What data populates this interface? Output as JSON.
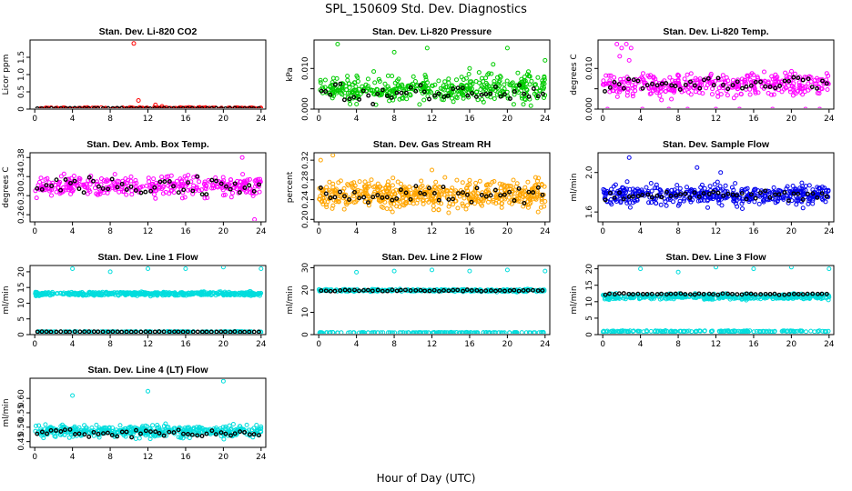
{
  "figure": {
    "title": "SPL_150609  Std. Dev. Diagnostics",
    "xlabel": "Hour of Day (UTC)"
  },
  "chart_data": [
    {
      "type": "scatter",
      "title": "Stan. Dev. Li-820 CO2",
      "ylabel": "Licor ppm",
      "xlim": [
        -0.5,
        24.5
      ],
      "ylim": [
        0,
        2
      ],
      "xticks": [
        0,
        4,
        8,
        12,
        16,
        20,
        24
      ],
      "yticks": [
        0,
        0.5,
        1.0,
        1.5
      ],
      "ytick_labels": [
        "0",
        "0.5",
        "1.0",
        "1.5"
      ],
      "colors": {
        "fill": "#ff0000",
        "avg": "#000000"
      },
      "series": [
        {
          "role": "fill",
          "base": 0.02,
          "spread": 0.04,
          "n": 220,
          "points": [
            [
              10.5,
              1.9
            ],
            [
              11.0,
              0.25
            ],
            [
              12.8,
              0.12
            ],
            [
              13.5,
              0.08
            ],
            [
              17.5,
              0.05
            ]
          ]
        },
        {
          "role": "avg",
          "base": 0.02,
          "spread": 0.01,
          "n": 48
        }
      ]
    },
    {
      "type": "scatter",
      "title": "Stan. Dev. Li-820 Pressure",
      "ylabel": "kPa",
      "xlim": [
        -0.5,
        24.5
      ],
      "ylim": [
        0,
        0.017
      ],
      "xticks": [
        0,
        4,
        8,
        12,
        16,
        20,
        24
      ],
      "yticks": [
        0,
        0.005,
        0.01
      ],
      "ytick_labels": [
        "0.000",
        "",
        "0.010"
      ],
      "colors": {
        "fill": "#00cc00",
        "avg": "#000000"
      },
      "series": [
        {
          "role": "fill",
          "base": 0.005,
          "spread": 0.005,
          "n": 420,
          "points": [
            [
              2,
              0.016
            ],
            [
              8,
              0.014
            ],
            [
              11.5,
              0.015
            ],
            [
              16,
              0.01
            ],
            [
              18.5,
              0.011
            ],
            [
              20,
              0.015
            ],
            [
              24,
              0.012
            ]
          ]
        },
        {
          "role": "avg",
          "base": 0.004,
          "spread": 0.004,
          "n": 48
        }
      ]
    },
    {
      "type": "scatter",
      "title": "Stan. Dev. Li-820 Temp.",
      "ylabel": "degrees C",
      "xlim": [
        -0.5,
        24.5
      ],
      "ylim": [
        0,
        0.017
      ],
      "xticks": [
        0,
        4,
        8,
        12,
        16,
        20,
        24
      ],
      "yticks": [
        0,
        0.005,
        0.01
      ],
      "ytick_labels": [
        "0.000",
        "",
        "0.010"
      ],
      "colors": {
        "fill": "#ff00ff",
        "avg": "#000000"
      },
      "series": [
        {
          "role": "fill",
          "base": 0.006,
          "spread": 0.004,
          "n": 380,
          "points": [
            [
              1.5,
              0.016
            ],
            [
              2.0,
              0.015
            ],
            [
              2.5,
              0.016
            ],
            [
              3.0,
              0.015
            ],
            [
              1.8,
              0.013
            ],
            [
              2.8,
              0.012
            ],
            [
              0.5,
              0.0
            ],
            [
              4.2,
              0.0
            ],
            [
              7.0,
              0.0
            ],
            [
              9.0,
              0.0
            ],
            [
              12.0,
              0.0
            ],
            [
              14.5,
              0.0
            ],
            [
              18.0,
              0.0
            ],
            [
              21.5,
              0.0
            ],
            [
              23.0,
              0.0
            ]
          ]
        },
        {
          "role": "avg",
          "base": 0.006,
          "spread": 0.003,
          "n": 48
        }
      ]
    },
    {
      "type": "scatter",
      "title": "Stan. Dev. Amb. Box Temp.",
      "ylabel": "degrees C",
      "xlim": [
        -0.5,
        24.5
      ],
      "ylim": [
        0.245,
        0.39
      ],
      "xticks": [
        0,
        4,
        8,
        12,
        16,
        20,
        24
      ],
      "yticks": [
        0.26,
        0.3,
        0.34,
        0.38
      ],
      "ytick_labels": [
        "0.26",
        "0.30",
        "0.34",
        "0.38"
      ],
      "colors": {
        "fill": "#ff00ff",
        "avg": "#000000"
      },
      "series": [
        {
          "role": "fill",
          "base": 0.32,
          "spread": 0.03,
          "n": 340,
          "points": [
            [
              23.3,
              0.25
            ],
            [
              22.0,
              0.38
            ]
          ]
        },
        {
          "role": "avg",
          "base": 0.32,
          "spread": 0.025,
          "n": 48
        }
      ]
    },
    {
      "type": "scatter",
      "title": "Stan. Dev. Gas Stream RH",
      "ylabel": "percent",
      "xlim": [
        -0.5,
        24.5
      ],
      "ylim": [
        0.195,
        0.335
      ],
      "xticks": [
        0,
        4,
        8,
        12,
        16,
        20,
        24
      ],
      "yticks": [
        0.2,
        0.24,
        0.28,
        0.32
      ],
      "ytick_labels": [
        "0.20",
        "0.24",
        "0.28",
        "0.32"
      ],
      "colors": {
        "fill": "#ffa500",
        "avg": "#000000"
      },
      "series": [
        {
          "role": "fill",
          "base": 0.25,
          "spread": 0.04,
          "n": 520,
          "points": [
            [
              1.5,
              0.33
            ],
            [
              0.2,
              0.32
            ],
            [
              12.0,
              0.3
            ]
          ]
        },
        {
          "role": "avg",
          "base": 0.25,
          "spread": 0.03,
          "n": 48
        }
      ]
    },
    {
      "type": "scatter",
      "title": "Stan. Dev. Sample Flow",
      "ylabel": "ml/min",
      "xlim": [
        -0.5,
        24.5
      ],
      "ylim": [
        1.5,
        2.2
      ],
      "xticks": [
        0,
        4,
        8,
        12,
        16,
        20,
        24
      ],
      "yticks": [
        1.6,
        2.0
      ],
      "ytick_labels": [
        "1.6",
        "2.0"
      ],
      "colors": {
        "fill": "#0000ee",
        "avg": "#000000"
      },
      "series": [
        {
          "role": "fill",
          "base": 1.77,
          "spread": 0.15,
          "n": 440,
          "points": [
            [
              2.8,
              2.15
            ],
            [
              10.0,
              2.05
            ],
            [
              12.5,
              2.0
            ]
          ]
        },
        {
          "role": "avg",
          "base": 1.77,
          "spread": 0.07,
          "n": 48
        }
      ]
    },
    {
      "type": "scatter",
      "title": "Stan. Dev. Line 1 Flow",
      "ylabel": "ml/min",
      "xlim": [
        -0.5,
        24.5
      ],
      "ylim": [
        0,
        22
      ],
      "xticks": [
        0,
        4,
        8,
        12,
        16,
        20,
        24
      ],
      "yticks": [
        0,
        5,
        10,
        15,
        20
      ],
      "ytick_labels": [
        "0",
        "5",
        "10",
        "15",
        "20"
      ],
      "colors": {
        "fill": "#00dddd",
        "avg": "#000000"
      },
      "series": [
        {
          "role": "fill",
          "base": 13.0,
          "spread": 0.9,
          "n": 480,
          "points": [
            [
              4,
              21
            ],
            [
              8,
              20
            ],
            [
              12,
              21
            ],
            [
              16,
              21
            ],
            [
              20,
              21.5
            ],
            [
              24,
              21
            ]
          ]
        },
        {
          "role": "fill",
          "base": 0.9,
          "spread": 0.15,
          "n": 160
        },
        {
          "role": "avg",
          "base": 0.9,
          "spread": 0.1,
          "n": 48
        }
      ]
    },
    {
      "type": "scatter",
      "title": "Stan. Dev. Line 2 Flow",
      "ylabel": "ml/min",
      "xlim": [
        -0.5,
        24.5
      ],
      "ylim": [
        0,
        31
      ],
      "xticks": [
        0,
        4,
        8,
        12,
        16,
        20,
        24
      ],
      "yticks": [
        0,
        10,
        20,
        30
      ],
      "ytick_labels": [
        "0",
        "10",
        "20",
        "30"
      ],
      "colors": {
        "fill": "#00dddd",
        "avg": "#000000"
      },
      "series": [
        {
          "role": "fill",
          "base": 19.8,
          "spread": 0.8,
          "n": 300,
          "points": [
            [
              4,
              28
            ],
            [
              8,
              28.5
            ],
            [
              12,
              29
            ],
            [
              16,
              28.5
            ],
            [
              20,
              29
            ],
            [
              24,
              28.5
            ]
          ]
        },
        {
          "role": "fill",
          "base": 0.9,
          "spread": 0.2,
          "n": 160
        },
        {
          "role": "avg",
          "base": 19.8,
          "spread": 0.5,
          "n": 48
        }
      ]
    },
    {
      "type": "scatter",
      "title": "Stan. Dev. Line 3 Flow",
      "ylabel": "ml/min",
      "xlim": [
        -0.5,
        24.5
      ],
      "ylim": [
        0,
        21
      ],
      "xticks": [
        0,
        4,
        8,
        12,
        16,
        20,
        24
      ],
      "yticks": [
        0,
        5,
        10,
        15,
        20
      ],
      "ytick_labels": [
        "0",
        "5",
        "10",
        "15",
        "20"
      ],
      "colors": {
        "fill": "#00dddd",
        "avg": "#000000"
      },
      "series": [
        {
          "role": "fill",
          "base": 11.5,
          "spread": 1.2,
          "n": 420,
          "points": [
            [
              4,
              20
            ],
            [
              8,
              19
            ],
            [
              12,
              20.5
            ],
            [
              16,
              20
            ],
            [
              20,
              20.5
            ],
            [
              24,
              20
            ]
          ]
        },
        {
          "role": "fill",
          "base": 1.0,
          "spread": 0.3,
          "n": 160
        },
        {
          "role": "avg",
          "base": 12.3,
          "spread": 0.4,
          "n": 48
        }
      ]
    },
    {
      "type": "scatter",
      "title": "Stan. Dev. Line 4 (LT) Flow",
      "ylabel": "ml/min",
      "xlim": [
        -0.5,
        24.5
      ],
      "ylim": [
        0.43,
        0.67
      ],
      "xticks": [
        0,
        4,
        8,
        12,
        16,
        20,
        24
      ],
      "yticks": [
        0.45,
        0.5,
        0.55,
        0.6
      ],
      "ytick_labels": [
        "0.45",
        "0.50",
        "0.55",
        "0.60"
      ],
      "colors": {
        "fill": "#00dddd",
        "avg": "#000000"
      },
      "series": [
        {
          "role": "fill",
          "base": 0.485,
          "spread": 0.03,
          "n": 440,
          "points": [
            [
              4,
              0.61
            ],
            [
              12,
              0.625
            ],
            [
              20,
              0.66
            ]
          ]
        },
        {
          "role": "avg",
          "base": 0.48,
          "spread": 0.02,
          "n": 48
        }
      ]
    }
  ]
}
